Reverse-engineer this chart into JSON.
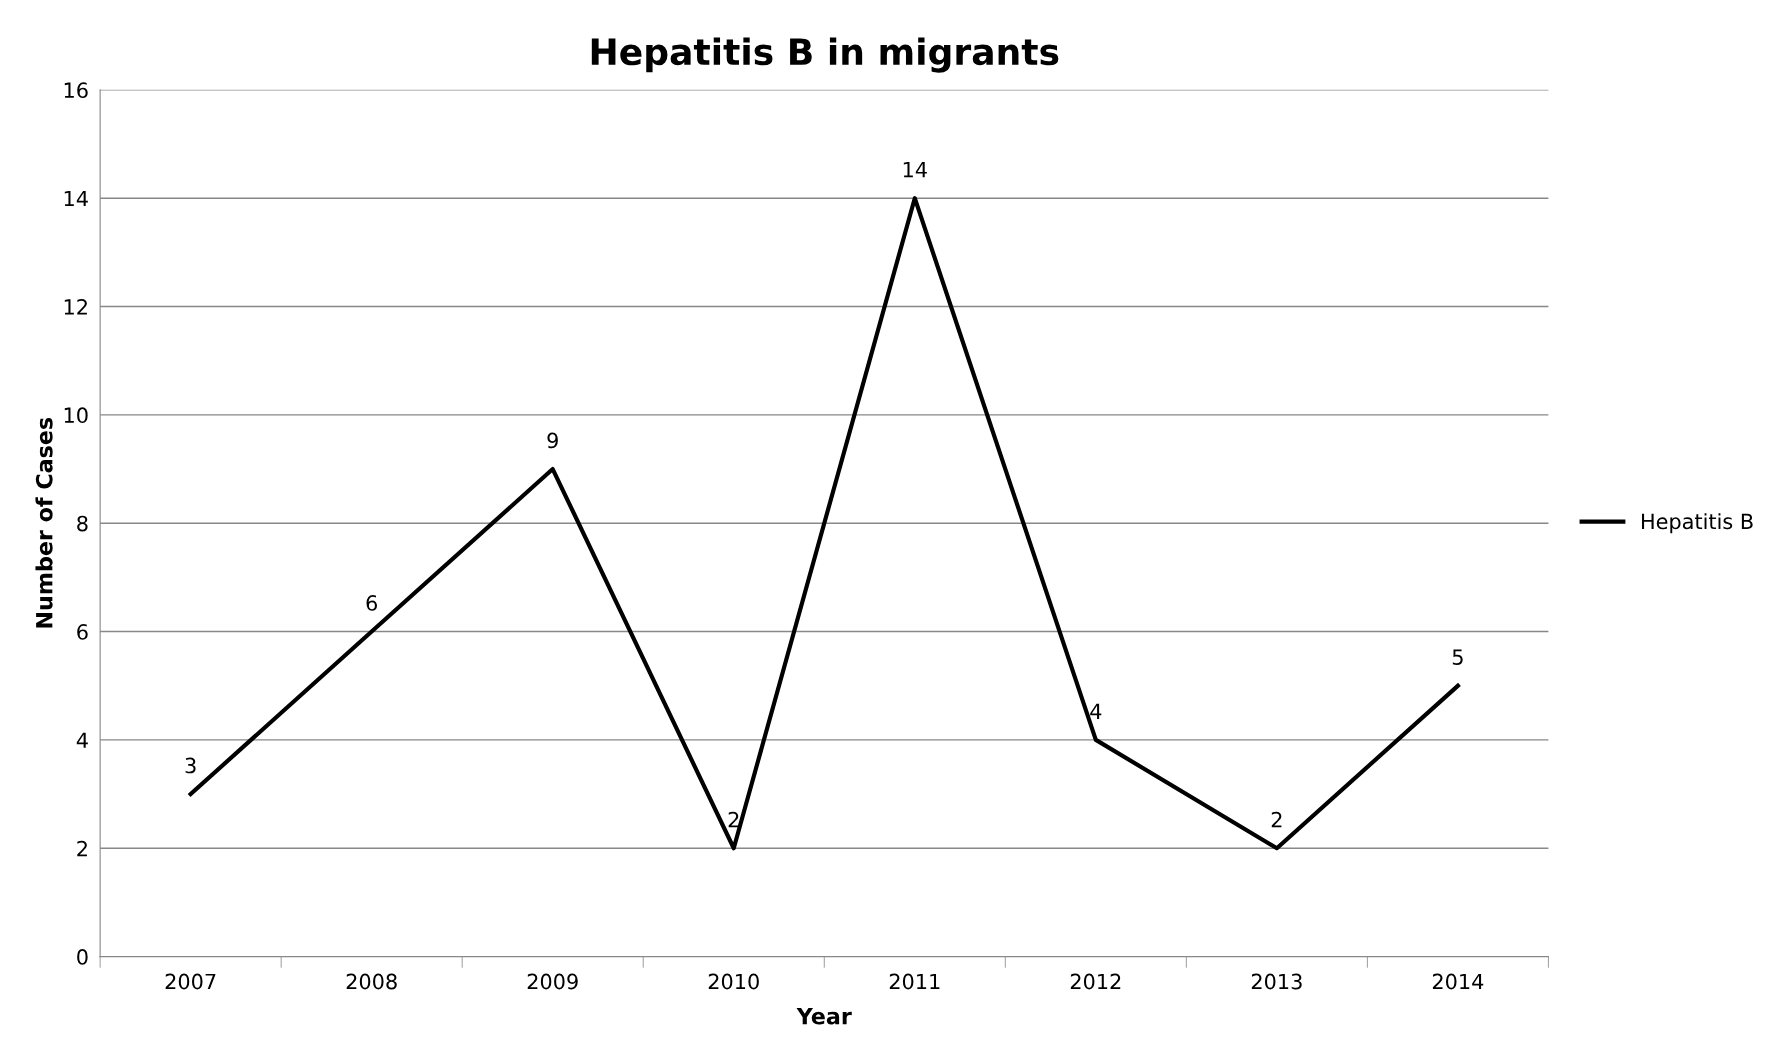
{
  "chart_data": {
    "type": "line",
    "title": "Hepatitis B in migrants",
    "xlabel": "Year",
    "ylabel": "Number of Cases",
    "categories": [
      "2007",
      "2008",
      "2009",
      "2010",
      "2011",
      "2012",
      "2013",
      "2014"
    ],
    "series": [
      {
        "name": "Hepatitis B",
        "color": "#000000",
        "values": [
          3,
          6,
          9,
          2,
          14,
          4,
          2,
          5
        ]
      }
    ],
    "ylim": [
      0,
      16
    ],
    "yticks": [
      0,
      2,
      4,
      6,
      8,
      10,
      12,
      14,
      16
    ],
    "grid": "y",
    "legend": "right",
    "data_labels": true,
    "marker": "none",
    "line_style": "solid"
  }
}
